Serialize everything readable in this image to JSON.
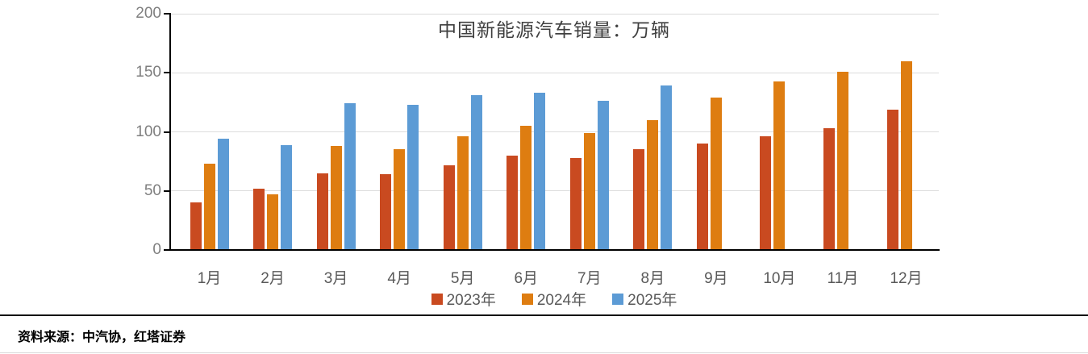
{
  "title": "中国新能源汽车销量：万辆",
  "source_note": "资料来源：中汽协，红塔证券",
  "colors": {
    "series_2023": "#C94A20",
    "series_2024": "#DE7D11",
    "series_2025": "#5C9BD5",
    "gridline": "#DCDCDC",
    "axis": "#000000",
    "y_label": "#7F7F7F",
    "x_label": "#595959"
  },
  "chart_data": {
    "type": "bar",
    "title": "中国新能源汽车销量：万辆",
    "xlabel": "",
    "ylabel": "",
    "ylim": [
      0,
      200
    ],
    "yticks": [
      0,
      50,
      100,
      150,
      200
    ],
    "grid": "horizontal",
    "legend_position": "bottom",
    "categories": [
      "1月",
      "2月",
      "3月",
      "4月",
      "5月",
      "6月",
      "7月",
      "8月",
      "9月",
      "10月",
      "11月",
      "12月"
    ],
    "series": [
      {
        "name": "2023年",
        "color": "#C94A20",
        "values": [
          40,
          52,
          65,
          64,
          72,
          80,
          78,
          85,
          90,
          96,
          103,
          119
        ]
      },
      {
        "name": "2024年",
        "color": "#DE7D11",
        "values": [
          73,
          47,
          88,
          85,
          96,
          105,
          99,
          110,
          129,
          143,
          151,
          160
        ]
      },
      {
        "name": "2025年",
        "color": "#5C9BD5",
        "values": [
          94,
          89,
          124,
          123,
          131,
          133,
          126,
          139,
          null,
          null,
          null,
          null
        ]
      }
    ]
  }
}
